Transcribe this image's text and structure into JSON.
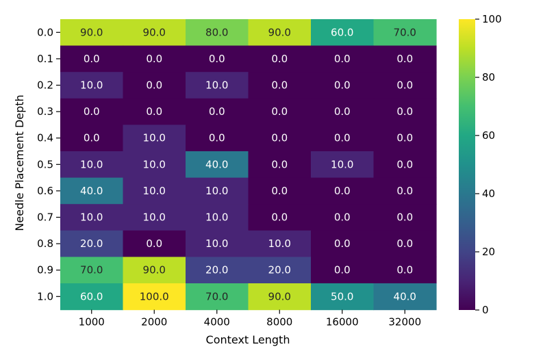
{
  "chart_data": {
    "type": "heatmap",
    "xlabel": "Context Length",
    "ylabel": "Needle Placement Depth",
    "x_categories": [
      "1000",
      "2000",
      "4000",
      "8000",
      "16000",
      "32000"
    ],
    "y_categories": [
      "0.0",
      "0.1",
      "0.2",
      "0.3",
      "0.4",
      "0.5",
      "0.6",
      "0.7",
      "0.8",
      "0.9",
      "1.0"
    ],
    "values": [
      [
        90,
        90,
        80,
        90,
        60,
        70
      ],
      [
        0,
        0,
        0,
        0,
        0,
        0
      ],
      [
        10,
        0,
        10,
        0,
        0,
        0
      ],
      [
        0,
        0,
        0,
        0,
        0,
        0
      ],
      [
        0,
        10,
        0,
        0,
        0,
        0
      ],
      [
        10,
        10,
        40,
        0,
        10,
        0
      ],
      [
        40,
        10,
        10,
        0,
        0,
        0
      ],
      [
        10,
        10,
        10,
        0,
        0,
        0
      ],
      [
        20,
        0,
        10,
        10,
        0,
        0
      ],
      [
        70,
        90,
        20,
        20,
        0,
        0
      ],
      [
        60,
        100,
        70,
        90,
        50,
        40
      ]
    ],
    "value_labels": [
      [
        "90.0",
        "90.0",
        "80.0",
        "90.0",
        "60.0",
        "70.0"
      ],
      [
        "0.0",
        "0.0",
        "0.0",
        "0.0",
        "0.0",
        "0.0"
      ],
      [
        "10.0",
        "0.0",
        "10.0",
        "0.0",
        "0.0",
        "0.0"
      ],
      [
        "0.0",
        "0.0",
        "0.0",
        "0.0",
        "0.0",
        "0.0"
      ],
      [
        "0.0",
        "10.0",
        "0.0",
        "0.0",
        "0.0",
        "0.0"
      ],
      [
        "10.0",
        "10.0",
        "40.0",
        "0.0",
        "10.0",
        "0.0"
      ],
      [
        "40.0",
        "10.0",
        "10.0",
        "0.0",
        "0.0",
        "0.0"
      ],
      [
        "10.0",
        "10.0",
        "10.0",
        "0.0",
        "0.0",
        "0.0"
      ],
      [
        "20.0",
        "0.0",
        "10.0",
        "10.0",
        "0.0",
        "0.0"
      ],
      [
        "70.0",
        "90.0",
        "20.0",
        "20.0",
        "0.0",
        "0.0"
      ],
      [
        "60.0",
        "100.0",
        "70.0",
        "90.0",
        "50.0",
        "40.0"
      ]
    ],
    "colormap": "viridis",
    "colorbar": {
      "range": [
        0,
        100
      ],
      "ticks": [
        0,
        20,
        40,
        60,
        80,
        100
      ],
      "tick_labels": [
        "0",
        "20",
        "40",
        "60",
        "80",
        "100"
      ]
    }
  }
}
